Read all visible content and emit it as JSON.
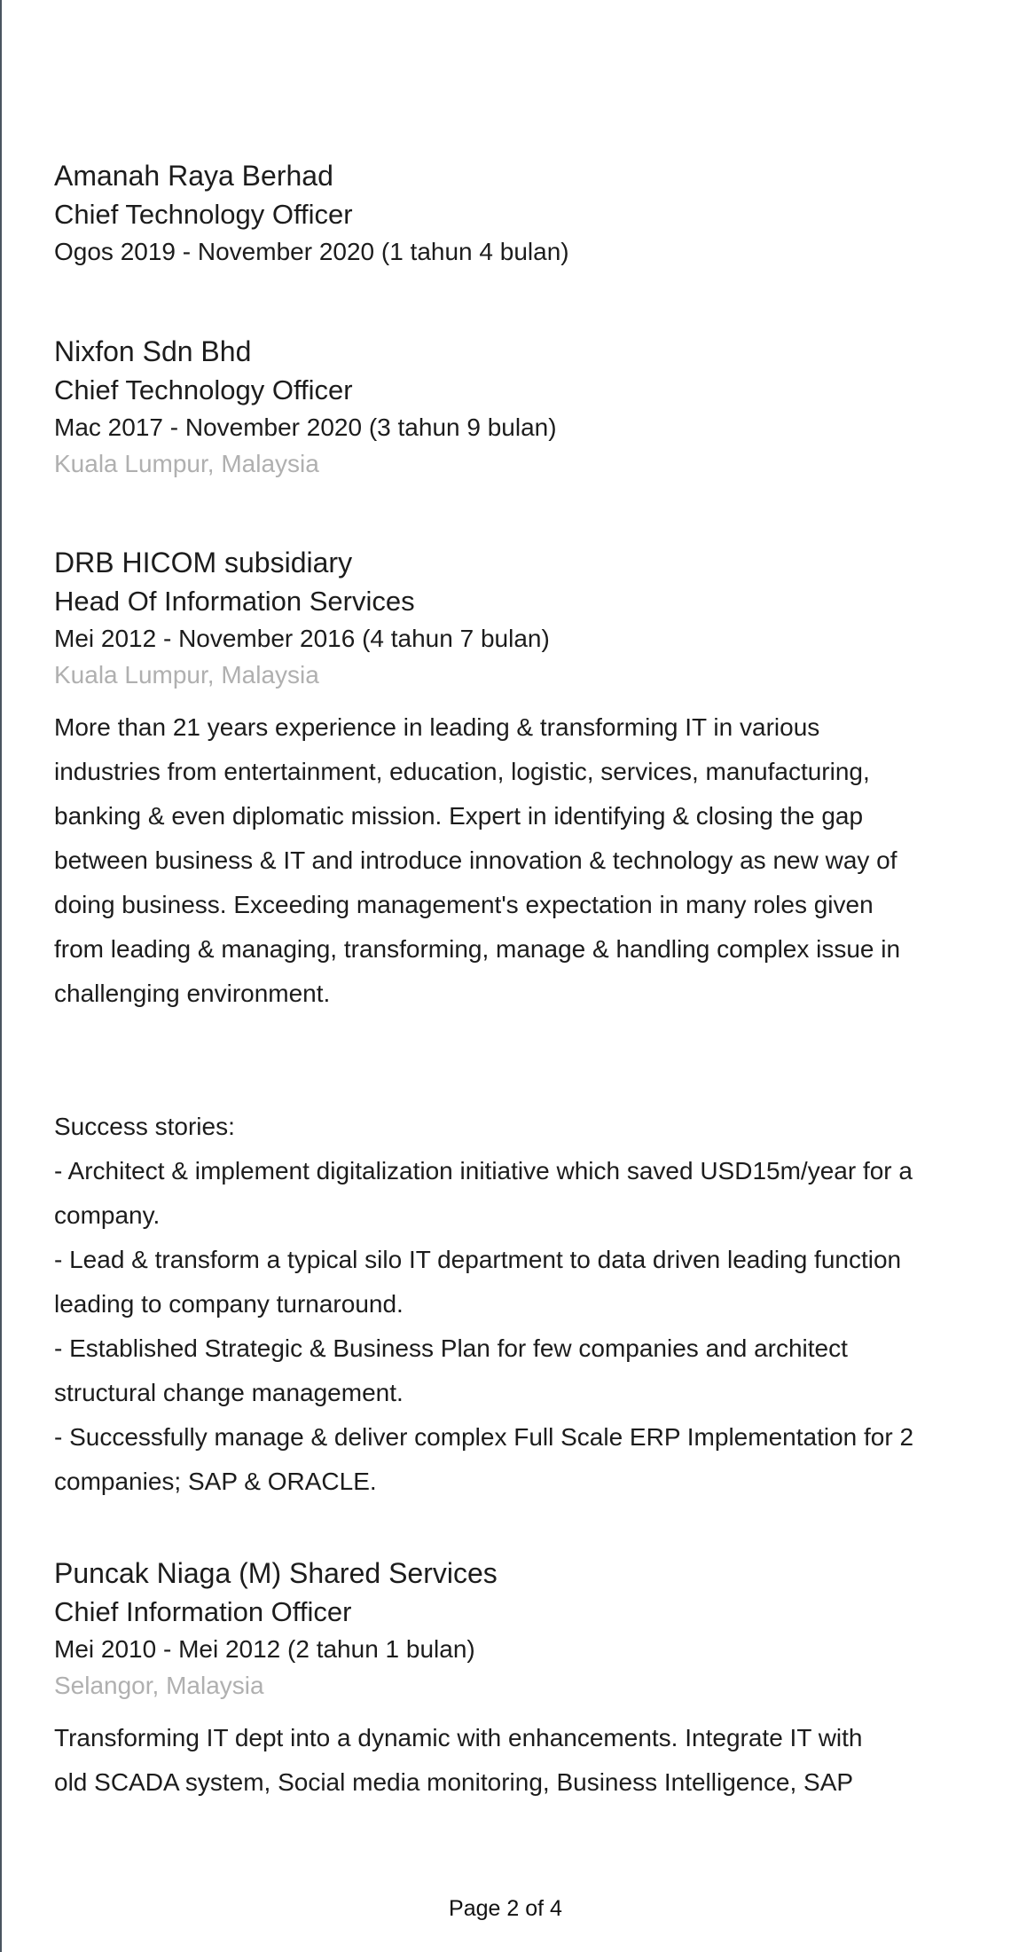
{
  "experience": [
    {
      "company": "Amanah Raya Berhad",
      "title": "Chief Technology Officer",
      "dates": "Ogos 2019 - November 2020 (1 tahun 4 bulan)"
    },
    {
      "company": "Nixfon Sdn Bhd",
      "title": "Chief Technology Officer",
      "dates": "Mac 2017 - November 2020 (3 tahun 9 bulan)",
      "location": "Kuala Lumpur, Malaysia"
    },
    {
      "company": "DRB HICOM subsidiary",
      "title": "Head Of Information Services",
      "dates": "Mei 2012 - November 2016 (4 tahun 7 bulan)",
      "location": "Kuala Lumpur, Malaysia",
      "description": "More than 21 years experience in leading & transforming IT in various\nindustries from entertainment, education, logistic, services, manufacturing,\nbanking & even diplomatic mission. Expert in identifying & closing the gap\nbetween business & IT and introduce innovation & technology as new way of\ndoing business.  Exceeding management's expectation in many roles given\nfrom leading & managing, transforming, manage & handling complex issue in\nchallenging environment.\n\n\nSuccess stories:\n- Architect & implement digitalization initiative which saved USD15m/year for a\ncompany.\n- Lead & transform a typical silo IT department to data driven leading function\nleading to company turnaround.\n- Established Strategic & Business Plan for few companies and architect\nstructural change management.\n- Successfully manage & deliver complex Full Scale ERP Implementation for 2\ncompanies; SAP & ORACLE."
    },
    {
      "company": "Puncak Niaga (M) Shared Services",
      "title": "Chief Information Officer",
      "dates": "Mei 2010 - Mei 2012 (2 tahun 1 bulan)",
      "location": "Selangor, Malaysia",
      "description": "Transforming IT dept into a dynamic with enhancements. Integrate IT with\nold SCADA system, Social media monitoring, Business Intelligence, SAP"
    }
  ],
  "footer": {
    "page_label": "Page 2 of 4"
  }
}
